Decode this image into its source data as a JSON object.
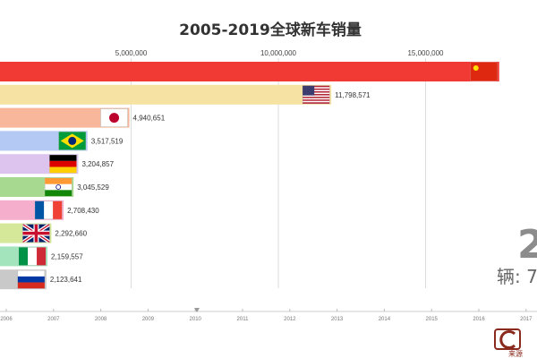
{
  "title": "2005-2019全球新车销量",
  "axis_ticks": [
    "5,000,000",
    "10,000,000",
    "15,000,000"
  ],
  "timeline_years": [
    "2006",
    "2007",
    "2008",
    "2009",
    "2010",
    "2011",
    "2012",
    "2013",
    "2014",
    "2015",
    "2016",
    "2017"
  ],
  "big_counter": "2",
  "unit_label": "辆: 7",
  "watermark": "来源",
  "colors": {
    "title": "#333333",
    "grid": "#dddddd",
    "timeline": "#cccccc"
  },
  "chart_data": {
    "type": "bar",
    "orientation": "horizontal",
    "title": "2005-2019全球新车销量",
    "xlim": [
      0,
      17500000
    ],
    "x_ticks": [
      5000000,
      10000000,
      15000000
    ],
    "categories": [
      "China",
      "USA",
      "Japan",
      "Brazil",
      "Germany",
      "India",
      "France",
      "UK",
      "Italy",
      "Russia"
    ],
    "values": [
      17500000,
      11798571,
      4940651,
      3517519,
      3204857,
      3045529,
      2708430,
      2292660,
      2159557,
      2123641
    ],
    "value_labels": [
      "",
      "11,798,571",
      "4,940,651",
      "3,517,519",
      "3,204,857",
      "3,045,529",
      "2,708,430",
      "2,292,660",
      "2,159,557",
      "2,123,641"
    ],
    "bar_colors": [
      "#f23a34",
      "#f6e3a3",
      "#f8b79a",
      "#b4c9f4",
      "#dcc4ee",
      "#a7d991",
      "#f5aecc",
      "#d5e89a",
      "#a3e4bc",
      "#c9c9c9"
    ],
    "flags": [
      "china-flag",
      "usa-flag",
      "japan-flag",
      "brazil-flag",
      "germany-flag",
      "india-flag",
      "france-flag",
      "uk-flag",
      "italy-flag",
      "russia-flag"
    ],
    "grid": true
  }
}
